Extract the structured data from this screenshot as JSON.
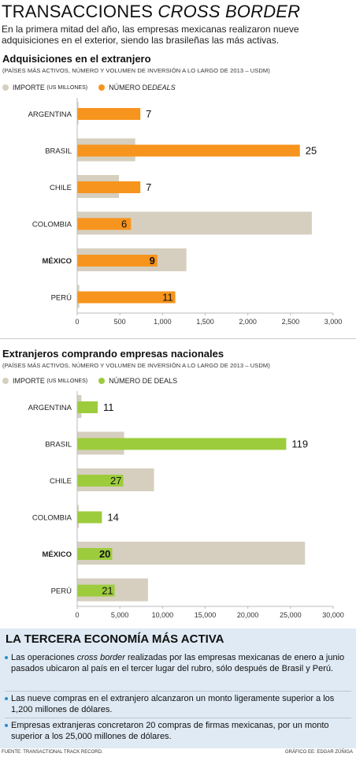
{
  "header": {
    "title_a": "TRANSACCIONES ",
    "title_b": "CROSS BORDER",
    "intro": "En la primera mitad del año, las empresas mexicanas realizaron nueve adquisiciones en el exterior, siendo las brasileñas las más activas."
  },
  "colors": {
    "importe": "#d6cfbf",
    "deals_1": "#f7941d",
    "deals_2": "#9ccc3c",
    "box_bg": "#dfeaf4",
    "bullet": "#2a8ccf"
  },
  "chart_data": [
    {
      "type": "bar",
      "title": "Adquisiciones en el extranjero",
      "subtitle": "(PAÍSES MÁS ACTIVOS, NÚMERO Y VOLUMEN DE INVERSIÓN A LO LARGO DE 2013 – USDM)",
      "legend": {
        "importe_label": "IMPORTE",
        "importe_unit": "(US MILLONES)",
        "deals_label": "NÚMERO DE ",
        "deals_label_it": "DEALS"
      },
      "categories": [
        "ARGENTINA",
        "BRASIL",
        "CHILE",
        "COLOMBIA",
        "MÉXICO",
        "PERÚ"
      ],
      "highlight": "MÉXICO",
      "series": [
        {
          "name": "IMPORTE (US MILLONES)",
          "values": [
            15,
            680,
            490,
            2750,
            1280,
            25
          ]
        },
        {
          "name": "NÚMERO DE DEALS",
          "values": [
            7,
            25,
            7,
            6,
            9,
            11
          ]
        }
      ],
      "deal_bar_values": [
        740,
        2610,
        740,
        630,
        940,
        1150
      ],
      "xlim": [
        0,
        3000
      ],
      "xticks": [
        0,
        500,
        1000,
        1500,
        2000,
        2500,
        3000
      ],
      "xtick_labels": [
        "0",
        "500",
        "1,000",
        "1,500",
        "2,000",
        "2,500",
        "3,000"
      ],
      "grid": false,
      "legend_position": "top-left"
    },
    {
      "type": "bar",
      "title": "Extranjeros comprando empresas nacionales",
      "subtitle": "(PAÍSES MÁS ACTIVOS, NÚMERO Y VOLUMEN DE INVERSIÓN A LO LARGO DE 2013 – USDM)",
      "legend": {
        "importe_label": "IMPORTE",
        "importe_unit": "(US MILLONES)",
        "deals_label": "NÚMERO DE DEALS",
        "deals_label_it": ""
      },
      "categories": [
        "ARGENTINA",
        "BRASIL",
        "CHILE",
        "COLOMBIA",
        "MÉXICO",
        "PERÚ"
      ],
      "highlight": "MÉXICO",
      "series": [
        {
          "name": "IMPORTE (US MILLONES)",
          "values": [
            500,
            5500,
            9000,
            200,
            26700,
            8300
          ]
        },
        {
          "name": "NÚMERO DE DEALS",
          "values": [
            11,
            119,
            27,
            14,
            20,
            21
          ]
        }
      ],
      "deal_bar_values": [
        2400,
        24500,
        5400,
        2900,
        4100,
        4400
      ],
      "xlim": [
        0,
        30000
      ],
      "xticks": [
        0,
        5000,
        10000,
        15000,
        20000,
        25000,
        30000
      ],
      "xtick_labels": [
        "0",
        "5,000",
        "10,000",
        "15,000",
        "20,000",
        "25,000",
        "30,000"
      ],
      "grid": false,
      "legend_position": "top-left"
    }
  ],
  "box": {
    "title": "LA TERCERA ECONOMÍA MÁS ACTIVA",
    "b1_a": "Las operaciones ",
    "b1_it": "cross border",
    "b1_b": " realizadas por las empresas mexicanas de enero a junio pasados ubicaron al país en el tercer lugar del rubro, sólo después de Brasil y Perú.",
    "b2": "Las nueve compras en el extranjero alcanzaron un monto ligeramente superior a los 1,200 millones de dólares.",
    "b3": "Empresas extranjeras concretaron 20 compras de firmas mexicanas, por un monto superior a los 25,000 millones de dólares."
  },
  "footer": {
    "source": "FUENTE: TRANSACTIONAL TRACK RECORD.",
    "credit": "GRÁFICO EE: EDGAR ZÚÑIGA"
  }
}
